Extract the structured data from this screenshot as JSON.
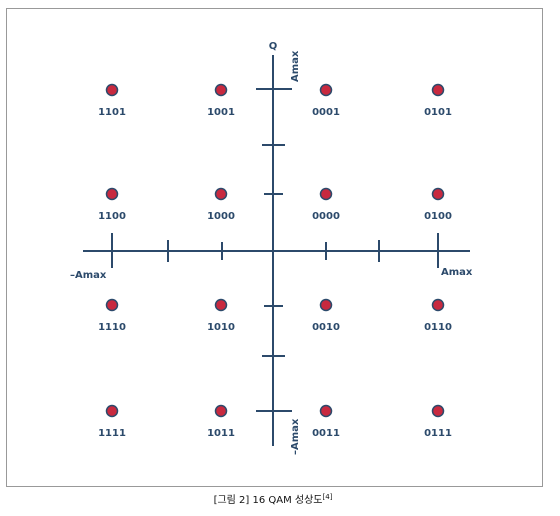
{
  "axes": {
    "q_label": "Q",
    "q_pos": "Amax",
    "q_neg": "–Amax",
    "i_pos": "Amax",
    "i_neg": "–Amax"
  },
  "points": [
    [
      "1101",
      "1001",
      "0001",
      "0101"
    ],
    [
      "1100",
      "1000",
      "0000",
      "0100"
    ],
    [
      "1110",
      "1010",
      "0010",
      "0110"
    ],
    [
      "1111",
      "1011",
      "0011",
      "0111"
    ]
  ],
  "caption": {
    "text": "[그림 2] 16 QAM 성상도",
    "ref": "[4]"
  }
}
